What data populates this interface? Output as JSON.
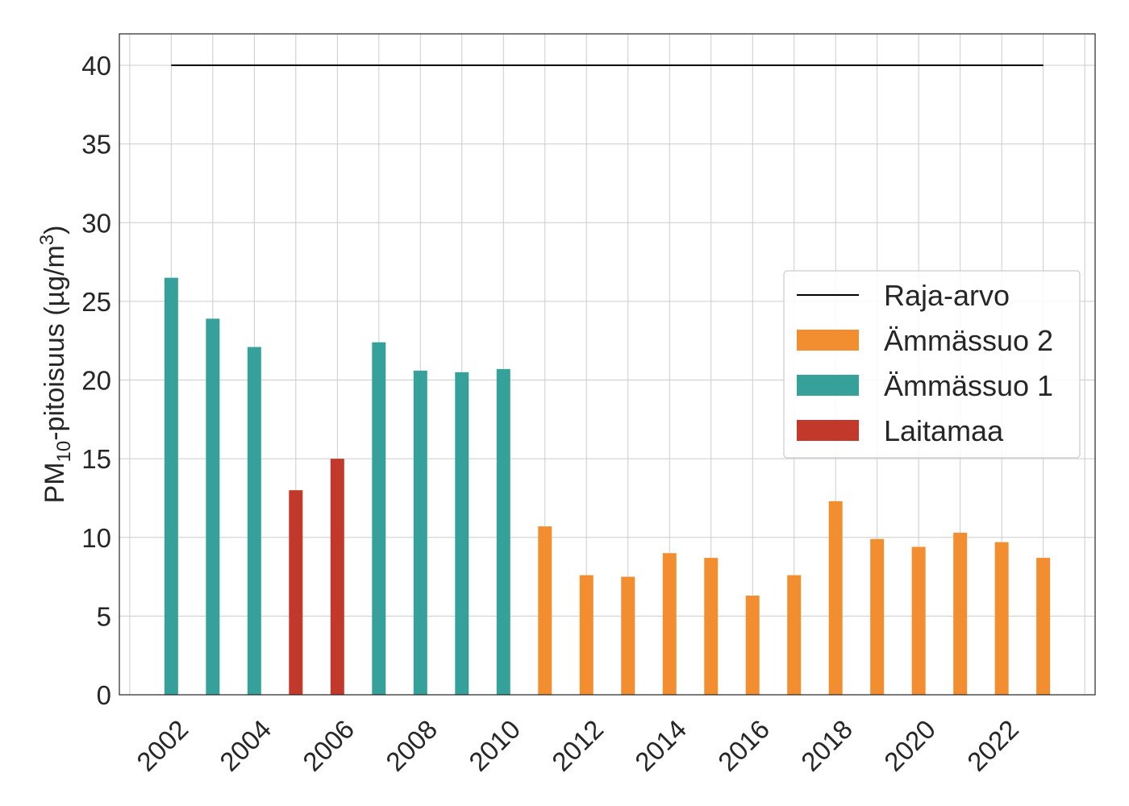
{
  "chart_data": {
    "type": "bar",
    "ylabel": {
      "prefix": "PM",
      "subscript": "10",
      "middle": "-pitoisuus (µg/m",
      "superscript": "3",
      "suffix": ")"
    },
    "ylim": [
      0,
      42
    ],
    "xlim": [
      2000.75,
      2024.25
    ],
    "yticks": [
      0,
      5,
      10,
      15,
      20,
      25,
      30,
      35,
      40
    ],
    "xticks": [
      "2002",
      "2004",
      "2006",
      "2008",
      "2010",
      "2012",
      "2014",
      "2016",
      "2018",
      "2020",
      "2022"
    ],
    "grid": true,
    "legend_position": "center-right",
    "limit_line": {
      "name": "Raja-arvo",
      "value": 40,
      "x_start": 2002,
      "x_end": 2023,
      "color": "#000000"
    },
    "series": [
      {
        "name": "Ämmässuo 2",
        "color": "#f28e30",
        "points": [
          {
            "x": 2011,
            "y": 10.7
          },
          {
            "x": 2012,
            "y": 7.6
          },
          {
            "x": 2013,
            "y": 7.5
          },
          {
            "x": 2014,
            "y": 9.0
          },
          {
            "x": 2015,
            "y": 8.7
          },
          {
            "x": 2016,
            "y": 6.3
          },
          {
            "x": 2017,
            "y": 7.6
          },
          {
            "x": 2018,
            "y": 12.3
          },
          {
            "x": 2019,
            "y": 9.9
          },
          {
            "x": 2020,
            "y": 9.4
          },
          {
            "x": 2021,
            "y": 10.3
          },
          {
            "x": 2022,
            "y": 9.7
          },
          {
            "x": 2023,
            "y": 8.7
          }
        ]
      },
      {
        "name": "Ämmässuo 1",
        "color": "#36a19b",
        "points": [
          {
            "x": 2002,
            "y": 26.5
          },
          {
            "x": 2003,
            "y": 23.9
          },
          {
            "x": 2004,
            "y": 22.1
          },
          {
            "x": 2007,
            "y": 22.4
          },
          {
            "x": 2008,
            "y": 20.6
          },
          {
            "x": 2009,
            "y": 20.5
          },
          {
            "x": 2010,
            "y": 20.7
          }
        ]
      },
      {
        "name": "Laitamaa",
        "color": "#c2392c",
        "points": [
          {
            "x": 2005,
            "y": 13.0
          },
          {
            "x": 2006,
            "y": 15.0
          }
        ]
      }
    ]
  }
}
